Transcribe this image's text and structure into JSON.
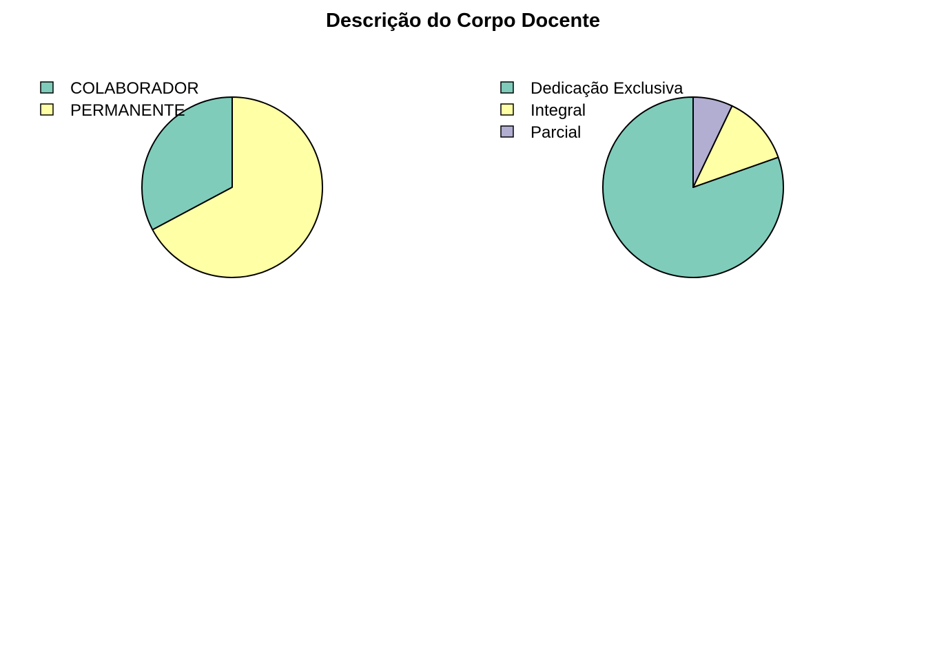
{
  "title": "Descrição do Corpo Docente",
  "colors": {
    "teal": "#7fccbb",
    "yellow": "#ffffa6",
    "lavender": "#b2aed2",
    "stroke": "#000000",
    "background": "#ffffff"
  },
  "chart_data": [
    {
      "type": "pie",
      "title": "",
      "legend_placement": "top-left",
      "start_angle_deg": 90,
      "direction": "counterclockwise",
      "slices": [
        {
          "label": "COLABORADOR",
          "value": 0.328,
          "color": "#7fccbb"
        },
        {
          "label": "PERMANENTE",
          "value": 0.672,
          "color": "#ffffa6"
        }
      ]
    },
    {
      "type": "pie",
      "title": "",
      "legend_placement": "top-left",
      "start_angle_deg": 90,
      "direction": "counterclockwise",
      "slices": [
        {
          "label": "Dedicação Exclusiva",
          "value": 0.804,
          "color": "#7fccbb"
        },
        {
          "label": "Integral",
          "value": 0.125,
          "color": "#ffffa6"
        },
        {
          "label": "Parcial",
          "value": 0.071,
          "color": "#b2aed2"
        }
      ]
    }
  ]
}
